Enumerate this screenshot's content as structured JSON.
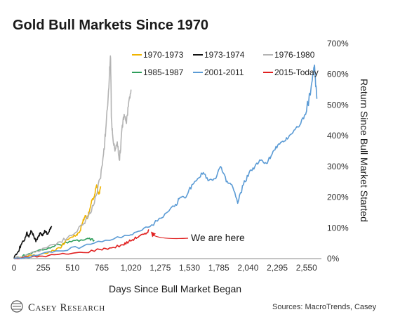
{
  "chart_data": {
    "type": "line",
    "title": "Gold Bull Markets Since 1970",
    "xlabel": "Days Since Bull Market Began",
    "ylabel": "Return Since Bull Market Started",
    "xlim": [
      0,
      2680
    ],
    "ylim": [
      0,
      700
    ],
    "x_ticks": [
      0,
      255,
      510,
      765,
      1020,
      1275,
      1530,
      1785,
      2040,
      2295,
      2550
    ],
    "x_tick_labels": [
      "0",
      "255",
      "510",
      "765",
      "1,020",
      "1,275",
      "1,530",
      "1,785",
      "2,040",
      "2,295",
      "2,550"
    ],
    "y_ticks": [
      0,
      100,
      200,
      300,
      400,
      500,
      600,
      700
    ],
    "y_tick_labels": [
      "0%",
      "100%",
      "200%",
      "300%",
      "400%",
      "500%",
      "600%",
      "700%"
    ],
    "y_axis_side": "right",
    "grid": false,
    "legend_position": "top",
    "series": [
      {
        "name": "1970-1973",
        "color": "#f0b400",
        "x": [
          0,
          80,
          160,
          240,
          320,
          400,
          450,
          500,
          540,
          570,
          600,
          620,
          640,
          660,
          680,
          700,
          720,
          740,
          755
        ],
        "y": [
          0,
          5,
          10,
          15,
          22,
          35,
          60,
          70,
          75,
          85,
          120,
          140,
          130,
          160,
          190,
          200,
          240,
          210,
          235
        ]
      },
      {
        "name": "1973-1974",
        "color": "#111111",
        "x": [
          0,
          30,
          60,
          90,
          110,
          130,
          150,
          170,
          190,
          210,
          230,
          250,
          270,
          290,
          310,
          330
        ],
        "y": [
          0,
          20,
          45,
          60,
          85,
          70,
          90,
          75,
          55,
          70,
          85,
          75,
          90,
          80,
          95,
          105
        ]
      },
      {
        "name": "1976-1980",
        "color": "#b3b3b3",
        "x": [
          0,
          100,
          200,
          300,
          400,
          500,
          600,
          650,
          700,
          750,
          780,
          800,
          820,
          840,
          850,
          860,
          880,
          900,
          920,
          940,
          960,
          980,
          1000,
          1020
        ],
        "y": [
          0,
          10,
          25,
          40,
          55,
          75,
          110,
          140,
          180,
          260,
          340,
          420,
          520,
          660,
          450,
          400,
          350,
          380,
          320,
          420,
          470,
          440,
          510,
          550
        ]
      },
      {
        "name": "1985-1987",
        "color": "#2e9e5b",
        "x": [
          0,
          100,
          200,
          300,
          400,
          500,
          600,
          650,
          700
        ],
        "y": [
          0,
          10,
          25,
          35,
          45,
          55,
          60,
          65,
          60
        ]
      },
      {
        "name": "2001-2011",
        "color": "#5b9bd5",
        "x": [
          0,
          200,
          400,
          600,
          800,
          1000,
          1100,
          1200,
          1300,
          1400,
          1450,
          1500,
          1550,
          1600,
          1650,
          1700,
          1750,
          1800,
          1850,
          1900,
          1950,
          2000,
          2050,
          2100,
          2150,
          2200,
          2250,
          2300,
          2350,
          2400,
          2450,
          2500,
          2550,
          2600,
          2620,
          2640
        ],
        "y": [
          0,
          10,
          25,
          40,
          60,
          75,
          90,
          110,
          135,
          170,
          200,
          200,
          240,
          260,
          280,
          255,
          260,
          300,
          250,
          240,
          180,
          240,
          280,
          300,
          320,
          310,
          340,
          370,
          380,
          400,
          420,
          440,
          480,
          580,
          630,
          520
        ]
      },
      {
        "name": "2015-Today",
        "color": "#e02020",
        "x": [
          0,
          150,
          300,
          450,
          600,
          750,
          850,
          950,
          1000,
          1050,
          1100,
          1150,
          1175
        ],
        "y": [
          0,
          5,
          10,
          15,
          20,
          30,
          35,
          45,
          55,
          65,
          75,
          80,
          95
        ]
      }
    ],
    "annotations": [
      {
        "text": "We are here",
        "x": 1175,
        "y": 95
      }
    ]
  },
  "branding": {
    "logo": "CASEY RESEARCH"
  },
  "source": "Sources: MacroTrends, Casey"
}
